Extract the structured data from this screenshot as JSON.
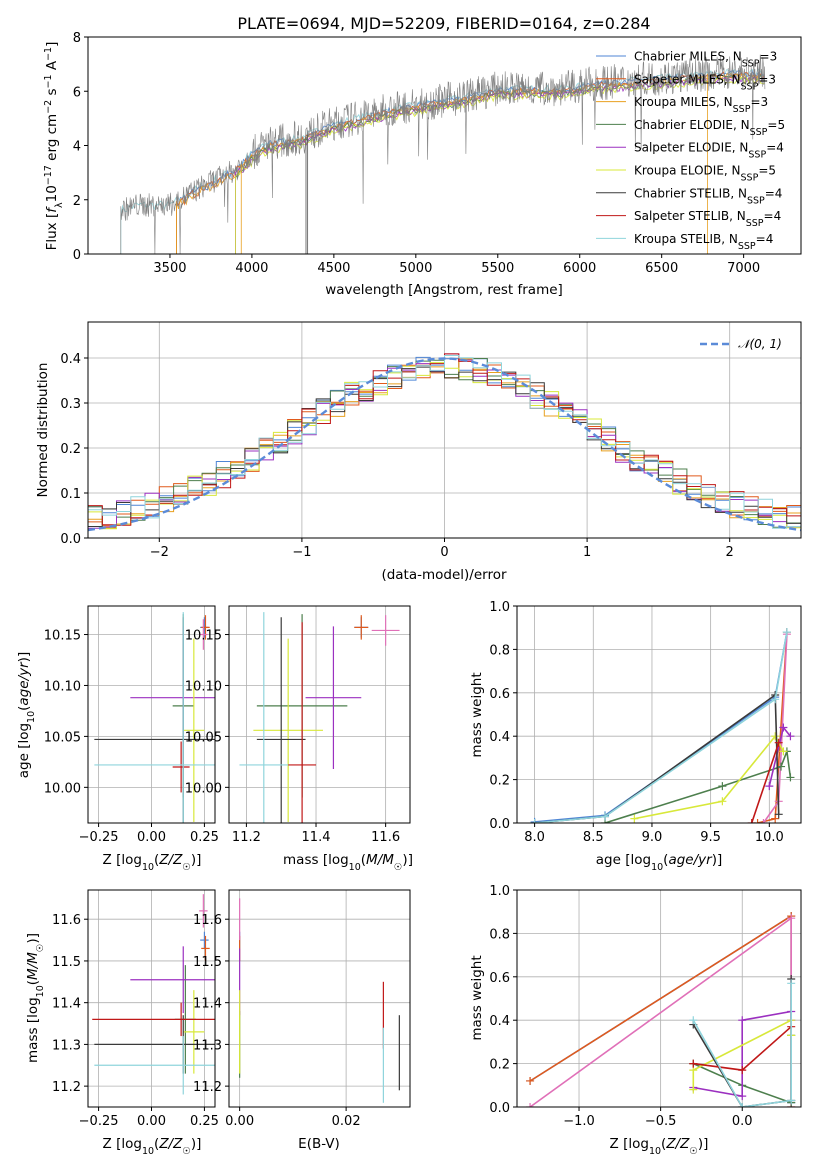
{
  "figure": {
    "title": "PLATE=0694, MJD=52209, FIBERID=0164, z=0.284"
  },
  "colors": {
    "Chabrier MILES": "#4f86d6",
    "Salpeter MILES": "#e05a1c",
    "Kroupa MILES": "#e8a020",
    "Chabrier ELODIE": "#4d7f4d",
    "Salpeter ELODIE": "#9b30c0",
    "Kroupa ELODIE": "#d8e83a",
    "Chabrier STELIB": "#3a3a3a",
    "Salpeter STELIB": "#c01818",
    "Kroupa STELIB": "#8fd4dc",
    "data": "#808080",
    "gauss": "#5b8bd8",
    "pink": "#e070b8"
  },
  "chart_data": [
    {
      "id": "spectrum",
      "type": "line",
      "title": "PLATE=0694, MJD=52209, FIBERID=0164, z=0.284",
      "xlabel": "wavelength [Angstrom, rest frame]",
      "ylabel": "Flux [f_λ 10^-17 erg cm^-2 s^-1 A^-1]",
      "xlim": [
        3000,
        7350
      ],
      "ylim": [
        0,
        8
      ],
      "xticks": [
        3500,
        4000,
        4500,
        5000,
        5500,
        6000,
        6500,
        7000
      ],
      "yticks": [
        0,
        2,
        4,
        6,
        8
      ],
      "grid": false,
      "legend_position": "top-right",
      "legend": [
        {
          "label": "Chabrier MILES, N",
          "sub": "SSP",
          "val": "=3",
          "color": "#4f86d6"
        },
        {
          "label": "Salpeter MILES, N",
          "sub": "SSP",
          "val": "=3",
          "color": "#e05a1c"
        },
        {
          "label": "Kroupa MILES, N",
          "sub": "SSP",
          "val": "=3",
          "color": "#e8a020"
        },
        {
          "label": "Chabrier ELODIE, N",
          "sub": "SSP",
          "val": "=5",
          "color": "#4d7f4d"
        },
        {
          "label": "Salpeter ELODIE, N",
          "sub": "SSP",
          "val": "=4",
          "color": "#9b30c0"
        },
        {
          "label": "Kroupa ELODIE, N",
          "sub": "SSP",
          "val": "=5",
          "color": "#d8e83a"
        },
        {
          "label": "Chabrier STELIB, N",
          "sub": "SSP",
          "val": "=4",
          "color": "#3a3a3a"
        },
        {
          "label": "Salpeter STELIB, N",
          "sub": "SSP",
          "val": "=4",
          "color": "#c01818"
        },
        {
          "label": "Kroupa STELIB, N",
          "sub": "SSP",
          "val": "=4",
          "color": "#8fd4dc"
        }
      ],
      "continuum": {
        "x": [
          3200,
          3300,
          3500,
          3700,
          3900,
          4000,
          4100,
          4300,
          4500,
          4700,
          4900,
          5100,
          5300,
          5500,
          5700,
          5900,
          6100,
          6300,
          6500,
          6700,
          6900,
          7100
        ],
        "y": [
          1.6,
          1.8,
          1.8,
          2.5,
          3.1,
          3.7,
          4.1,
          4.3,
          4.8,
          5.1,
          5.4,
          5.6,
          5.8,
          6.1,
          6.1,
          6.1,
          6.3,
          6.4,
          6.5,
          6.6,
          6.7,
          6.7
        ]
      }
    },
    {
      "id": "residuals",
      "type": "line",
      "xlabel": "(data-model)/error",
      "ylabel": "Normed distribution",
      "xlim": [
        -2.5,
        2.5
      ],
      "ylim": [
        0,
        0.48
      ],
      "xticks": [
        -2,
        -1,
        0,
        1,
        2
      ],
      "yticks": [
        0.0,
        0.1,
        0.2,
        0.3,
        0.4
      ],
      "grid": true,
      "legend_position": "top-right",
      "legend": [
        {
          "label": "𝒩(0, 1)",
          "color": "#5b8bd8"
        }
      ],
      "histogram_bin_width": 0.1
    },
    {
      "id": "age-vs-Z",
      "type": "scatter",
      "xlabel": "Z [log10(Z/Z☉)]",
      "ylabel": "age  [log10(age/yr)]",
      "xlim": [
        -0.3,
        0.3
      ],
      "ylim": [
        9.965,
        10.178
      ],
      "xticks": [
        -0.25,
        0.0,
        0.25
      ],
      "yticks": [
        10.0,
        10.05,
        10.1,
        10.15
      ],
      "grid": true,
      "points": [
        {
          "x": 0.25,
          "y": 10.157,
          "xerr": 0.02,
          "yerr": 0.01,
          "color": "#4f86d6"
        },
        {
          "x": 0.255,
          "y": 10.157,
          "xerr": 0.02,
          "yerr": 0.012,
          "color": "#e05a1c"
        },
        {
          "x": 0.245,
          "y": 10.15,
          "xerr": 0.02,
          "yerr": 0.015,
          "color": "#e070b8"
        },
        {
          "x": 0.15,
          "y": 10.08,
          "xerr": 0.05,
          "yerr": 0.09,
          "color": "#4d7f4d"
        },
        {
          "x": 0.15,
          "y": 10.088,
          "xerr": 0.25,
          "yerr": 0.07,
          "color": "#9b30c0"
        },
        {
          "x": 0.2,
          "y": 10.056,
          "xerr": 0.05,
          "yerr": 0.09,
          "color": "#d8e83a"
        },
        {
          "x": 0.15,
          "y": 10.047,
          "xerr": 0.42,
          "yerr": 0.12,
          "color": "#3a3a3a"
        },
        {
          "x": 0.14,
          "y": 10.02,
          "xerr": 0.04,
          "yerr": 0.025,
          "color": "#c01818"
        },
        {
          "x": 0.15,
          "y": 10.022,
          "xerr": 0.42,
          "yerr": 0.15,
          "color": "#8fd4dc"
        }
      ]
    },
    {
      "id": "age-vs-mass",
      "type": "scatter",
      "xlabel": "mass [log10(M/M☉)]",
      "ylabel": "",
      "xlim": [
        11.15,
        11.67
      ],
      "ylim": [
        9.965,
        10.178
      ],
      "xticks": [
        11.2,
        11.4,
        11.6
      ],
      "yticks": [
        10.0,
        10.05,
        10.1,
        10.15
      ],
      "grid": true,
      "points": [
        {
          "x": 11.53,
          "y": 10.157,
          "xerr": 0.02,
          "yerr": 0.01,
          "color": "#4f86d6"
        },
        {
          "x": 11.53,
          "y": 10.157,
          "xerr": 0.02,
          "yerr": 0.012,
          "color": "#e05a1c"
        },
        {
          "x": 11.6,
          "y": 10.154,
          "xerr": 0.04,
          "yerr": 0.015,
          "color": "#e070b8"
        },
        {
          "x": 11.36,
          "y": 10.08,
          "xerr": 0.13,
          "yerr": 0.09,
          "color": "#4d7f4d"
        },
        {
          "x": 11.45,
          "y": 10.088,
          "xerr": 0.08,
          "yerr": 0.07,
          "color": "#9b30c0"
        },
        {
          "x": 11.32,
          "y": 10.056,
          "xerr": 0.1,
          "yerr": 0.09,
          "color": "#d8e83a"
        },
        {
          "x": 11.3,
          "y": 10.047,
          "xerr": 0.07,
          "yerr": 0.12,
          "color": "#3a3a3a"
        },
        {
          "x": 11.36,
          "y": 10.022,
          "xerr": 0.04,
          "yerr": 0.14,
          "color": "#c01818"
        },
        {
          "x": 11.25,
          "y": 10.022,
          "xerr": 0.07,
          "yerr": 0.15,
          "color": "#8fd4dc"
        }
      ]
    },
    {
      "id": "massweight-vs-age",
      "type": "line",
      "xlabel": "age  [log10(age/yr)]",
      "ylabel": "mass weight",
      "xlim": [
        7.85,
        10.27
      ],
      "ylim": [
        0,
        1.0
      ],
      "xticks": [
        8.0,
        8.5,
        9.0,
        9.5,
        10.0
      ],
      "yticks": [
        0.0,
        0.2,
        0.4,
        0.6,
        0.8,
        1.0
      ],
      "grid": true,
      "series": [
        {
          "color": "#4f86d6",
          "x": [
            8.0,
            8.6,
            10.05,
            10.15
          ],
          "y": [
            0.005,
            0.035,
            0.58,
            0.88
          ]
        },
        {
          "color": "#e05a1c",
          "x": [
            9.9,
            10.05,
            10.15
          ],
          "y": [
            0.0,
            0.02,
            0.88
          ]
        },
        {
          "color": "#e070b8",
          "x": [
            9.95,
            10.08,
            10.15
          ],
          "y": [
            0.0,
            0.1,
            0.87
          ]
        },
        {
          "color": "#4d7f4d",
          "x": [
            8.6,
            9.6,
            10.1,
            10.15,
            10.18
          ],
          "y": [
            0.0,
            0.17,
            0.26,
            0.33,
            0.21
          ]
        },
        {
          "color": "#9b30c0",
          "x": [
            10.0,
            10.12,
            10.18
          ],
          "y": [
            0.17,
            0.44,
            0.4
          ]
        },
        {
          "color": "#d8e83a",
          "x": [
            8.85,
            9.6,
            10.05,
            10.12
          ],
          "y": [
            0.02,
            0.1,
            0.4,
            0.33
          ]
        },
        {
          "color": "#3a3a3a",
          "x": [
            8.0,
            8.6,
            10.05,
            10.08
          ],
          "y": [
            0.0,
            0.03,
            0.59,
            0.04
          ]
        },
        {
          "color": "#c01818",
          "x": [
            9.85,
            10.08
          ],
          "y": [
            0.0,
            0.37
          ]
        },
        {
          "color": "#8fd4dc",
          "x": [
            8.0,
            8.6,
            10.05,
            10.15
          ],
          "y": [
            0.0,
            0.03,
            0.57,
            0.88
          ]
        }
      ]
    },
    {
      "id": "mass-vs-Z",
      "type": "scatter",
      "xlabel": "Z [log10(Z/Z☉)]",
      "ylabel": "mass [log10(M/M☉)]",
      "xlim": [
        -0.3,
        0.3
      ],
      "ylim": [
        11.15,
        11.67
      ],
      "xticks": [
        -0.25,
        0.0,
        0.25
      ],
      "yticks": [
        11.2,
        11.3,
        11.4,
        11.5,
        11.6
      ],
      "grid": true,
      "points": [
        {
          "x": 0.25,
          "y": 11.55,
          "xerr": 0.02,
          "yerr": 0.02,
          "color": "#4f86d6"
        },
        {
          "x": 0.255,
          "y": 11.53,
          "xerr": 0.02,
          "yerr": 0.03,
          "color": "#e05a1c"
        },
        {
          "x": 0.245,
          "y": 11.62,
          "xerr": 0.02,
          "yerr": 0.04,
          "color": "#e070b8"
        },
        {
          "x": 0.16,
          "y": 11.36,
          "xerr": 0.05,
          "yerr": 0.13,
          "color": "#4d7f4d"
        },
        {
          "x": 0.15,
          "y": 11.455,
          "xerr": 0.25,
          "yerr": 0.08,
          "color": "#9b30c0"
        },
        {
          "x": 0.2,
          "y": 11.33,
          "xerr": 0.05,
          "yerr": 0.1,
          "color": "#d8e83a"
        },
        {
          "x": 0.15,
          "y": 11.3,
          "xerr": 0.42,
          "yerr": 0.07,
          "color": "#3a3a3a"
        },
        {
          "x": 0.14,
          "y": 11.36,
          "xerr": 0.42,
          "yerr": 0.04,
          "color": "#c01818"
        },
        {
          "x": 0.15,
          "y": 11.25,
          "xerr": 0.42,
          "yerr": 0.07,
          "color": "#8fd4dc"
        }
      ]
    },
    {
      "id": "mass-vs-EBV",
      "type": "scatter",
      "xlabel": "E(B-V)",
      "ylabel": "",
      "xlim": [
        -0.002,
        0.032
      ],
      "ylim": [
        11.15,
        11.67
      ],
      "xticks": [
        0.0,
        0.02
      ],
      "yticks": [
        11.2,
        11.3,
        11.4,
        11.5,
        11.6
      ],
      "grid": true,
      "points": [
        {
          "x": 0.0,
          "y": 11.55,
          "xerr": 0.0,
          "yerr": 0.02,
          "color": "#4f86d6"
        },
        {
          "x": 0.0,
          "y": 11.53,
          "xerr": 0.0,
          "yerr": 0.03,
          "color": "#e05a1c"
        },
        {
          "x": 0.0,
          "y": 11.6,
          "xerr": 0.0,
          "yerr": 0.05,
          "color": "#e070b8"
        },
        {
          "x": 0.0,
          "y": 11.3,
          "xerr": 0.0,
          "yerr": 0.08,
          "color": "#4d7f4d"
        },
        {
          "x": 0.0,
          "y": 11.45,
          "xerr": 0.0,
          "yerr": 0.08,
          "color": "#9b30c0"
        },
        {
          "x": 0.0,
          "y": 11.33,
          "xerr": 0.0,
          "yerr": 0.1,
          "color": "#d8e83a"
        },
        {
          "x": 0.03,
          "y": 11.28,
          "xerr": 0.0,
          "yerr": 0.09,
          "color": "#3a3a3a"
        },
        {
          "x": 0.027,
          "y": 11.37,
          "xerr": 0.0,
          "yerr": 0.08,
          "color": "#c01818"
        },
        {
          "x": 0.027,
          "y": 11.25,
          "xerr": 0.0,
          "yerr": 0.09,
          "color": "#8fd4dc"
        }
      ]
    },
    {
      "id": "massweight-vs-Z",
      "type": "line",
      "xlabel": "Z [log10(Z/Z☉)]",
      "ylabel": "mass weight",
      "xlim": [
        -1.38,
        0.36
      ],
      "ylim": [
        0,
        1.0
      ],
      "xticks": [
        -1.0,
        -0.5,
        0.0
      ],
      "yticks": [
        0.0,
        0.2,
        0.4,
        0.6,
        0.8,
        1.0
      ],
      "grid": true,
      "series": [
        {
          "color": "#4f86d6",
          "x": [
            -1.3,
            0.3,
            0.3
          ],
          "y": [
            0.12,
            0.88,
            0.02
          ]
        },
        {
          "color": "#e05a1c",
          "x": [
            -1.3,
            0.3,
            0.3
          ],
          "y": [
            0.12,
            0.88,
            0.0
          ]
        },
        {
          "color": "#e070b8",
          "x": [
            -1.3,
            0.3,
            0.3
          ],
          "y": [
            0.0,
            0.87,
            0.0
          ]
        },
        {
          "color": "#4d7f4d",
          "x": [
            -0.3,
            0.0,
            0.3,
            0.3
          ],
          "y": [
            0.2,
            0.1,
            0.02,
            0.33
          ]
        },
        {
          "color": "#9b30c0",
          "x": [
            -0.3,
            0.0,
            0.0,
            0.3,
            0.3
          ],
          "y": [
            0.09,
            0.05,
            0.4,
            0.44,
            0.4
          ]
        },
        {
          "color": "#d8e83a",
          "x": [
            -0.3,
            -0.3,
            0.3,
            0.3
          ],
          "y": [
            0.08,
            0.17,
            0.4,
            0.33
          ]
        },
        {
          "color": "#3a3a3a",
          "x": [
            -0.3,
            0.0,
            0.3,
            0.3
          ],
          "y": [
            0.38,
            0.0,
            0.03,
            0.59
          ]
        },
        {
          "color": "#c01818",
          "x": [
            -0.3,
            0.0,
            0.3
          ],
          "y": [
            0.2,
            0.17,
            0.37
          ]
        },
        {
          "color": "#8fd4dc",
          "x": [
            -0.3,
            0.0,
            0.3,
            0.3
          ],
          "y": [
            0.4,
            0.0,
            0.03,
            0.57
          ]
        }
      ]
    }
  ]
}
